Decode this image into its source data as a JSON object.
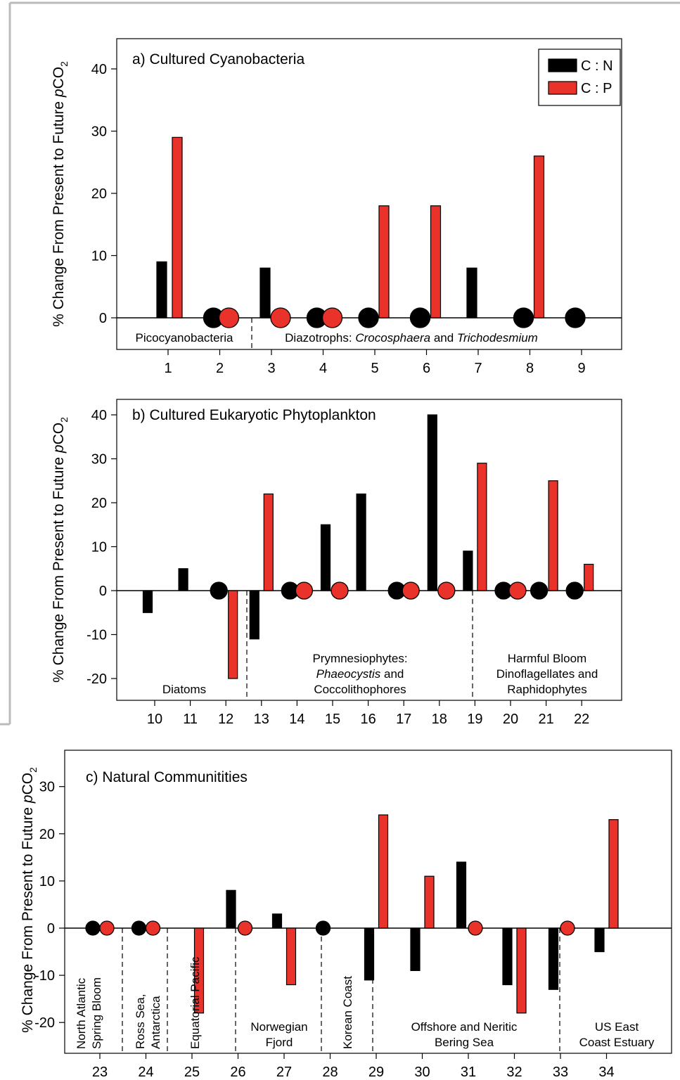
{
  "chart_data": [
    {
      "type": "bar",
      "title": "a) Cultured Cyanobacteria",
      "ylabel": "% Change From Present to Future pCO2",
      "ylim": [
        -7,
        45
      ],
      "yticks": [
        0,
        10,
        20,
        30,
        40
      ],
      "categories": [
        "1",
        "2",
        "3",
        "4",
        "5",
        "6",
        "7",
        "8",
        "9"
      ],
      "series": [
        {
          "name": "C : N",
          "color": "#000000",
          "values": [
            9,
            0,
            8,
            0,
            0,
            0,
            8,
            0,
            0
          ]
        },
        {
          "name": "C : P",
          "color": "#e8322a",
          "values": [
            29,
            0,
            0,
            0,
            18,
            18,
            null,
            26,
            null
          ]
        }
      ],
      "groups": [
        {
          "label": "Picocyanobacteria",
          "start": 1,
          "end": 2
        },
        {
          "label": "Diazotrophs: Crocosphaera and Trichodesmium",
          "start": 3,
          "end": 9
        }
      ],
      "legend": "top-right"
    },
    {
      "type": "bar",
      "title": "b) Cultured Eukaryotic Phytoplankton",
      "ylabel": "% Change From Present to Future pCO2",
      "ylim": [
        -24,
        45
      ],
      "yticks": [
        -20,
        -10,
        0,
        10,
        20,
        30,
        40
      ],
      "categories": [
        "10",
        "11",
        "12",
        "13",
        "14",
        "15",
        "16",
        "17",
        "18",
        "19",
        "20",
        "21",
        "22"
      ],
      "series": [
        {
          "name": "C : N",
          "color": "#000000",
          "values": [
            -5,
            5,
            0,
            -11,
            0,
            15,
            22,
            0,
            40,
            9,
            0,
            0,
            0
          ]
        },
        {
          "name": "C : P",
          "color": "#e8322a",
          "values": [
            null,
            null,
            -20,
            22,
            0,
            0,
            null,
            0,
            0,
            29,
            0,
            25,
            6
          ]
        }
      ],
      "groups": [
        {
          "lines": [
            "Diatoms"
          ],
          "start": 10,
          "end": 12
        },
        {
          "lines": [
            "Prymnesiophytes:",
            "Phaeocystis and",
            "Coccolithophores"
          ],
          "start": 13,
          "end": 18
        },
        {
          "lines": [
            "Harmful Bloom",
            "Dinoflagellates and",
            "Raphidophytes"
          ],
          "start": 19,
          "end": 22
        }
      ]
    },
    {
      "type": "bar",
      "title": "c) Natural Communitities",
      "ylabel": "% Change From Present to Future pCO2",
      "ylim": [
        -26,
        35
      ],
      "yticks": [
        -20,
        -10,
        0,
        10,
        20,
        30
      ],
      "categories": [
        "23",
        "24",
        "25",
        "26",
        "27",
        "28",
        "29",
        "30",
        "31",
        "32",
        "33",
        "34"
      ],
      "series": [
        {
          "name": "C : N",
          "color": "#000000",
          "values": [
            0,
            0,
            null,
            8,
            3,
            0,
            -11,
            -9,
            14,
            -12,
            -13,
            -5
          ]
        },
        {
          "name": "C : P",
          "color": "#e8322a",
          "values": [
            0,
            0,
            -18,
            0,
            -12,
            null,
            24,
            11,
            0,
            -18,
            0,
            23
          ]
        }
      ],
      "groups": [
        {
          "lines": [
            "North Atlantic",
            "Spring Bloom"
          ],
          "vertical": true,
          "start": 23,
          "end": 23
        },
        {
          "lines": [
            "Ross Sea,",
            "Antarctica"
          ],
          "vertical": true,
          "start": 24,
          "end": 24
        },
        {
          "lines": [
            "Equatorial Pacific"
          ],
          "vertical": true,
          "start": 25,
          "end": 25
        },
        {
          "lines": [
            "Norwegian",
            "Fjord"
          ],
          "start": 26,
          "end": 27
        },
        {
          "lines": [
            "Korean Coast"
          ],
          "vertical": true,
          "start": 28,
          "end": 28
        },
        {
          "lines": [
            "Offshore and Neritic",
            "Bering Sea"
          ],
          "start": 29,
          "end": 32
        },
        {
          "lines": [
            "US East",
            "Coast Estuary"
          ],
          "start": 33,
          "end": 34
        }
      ]
    }
  ]
}
